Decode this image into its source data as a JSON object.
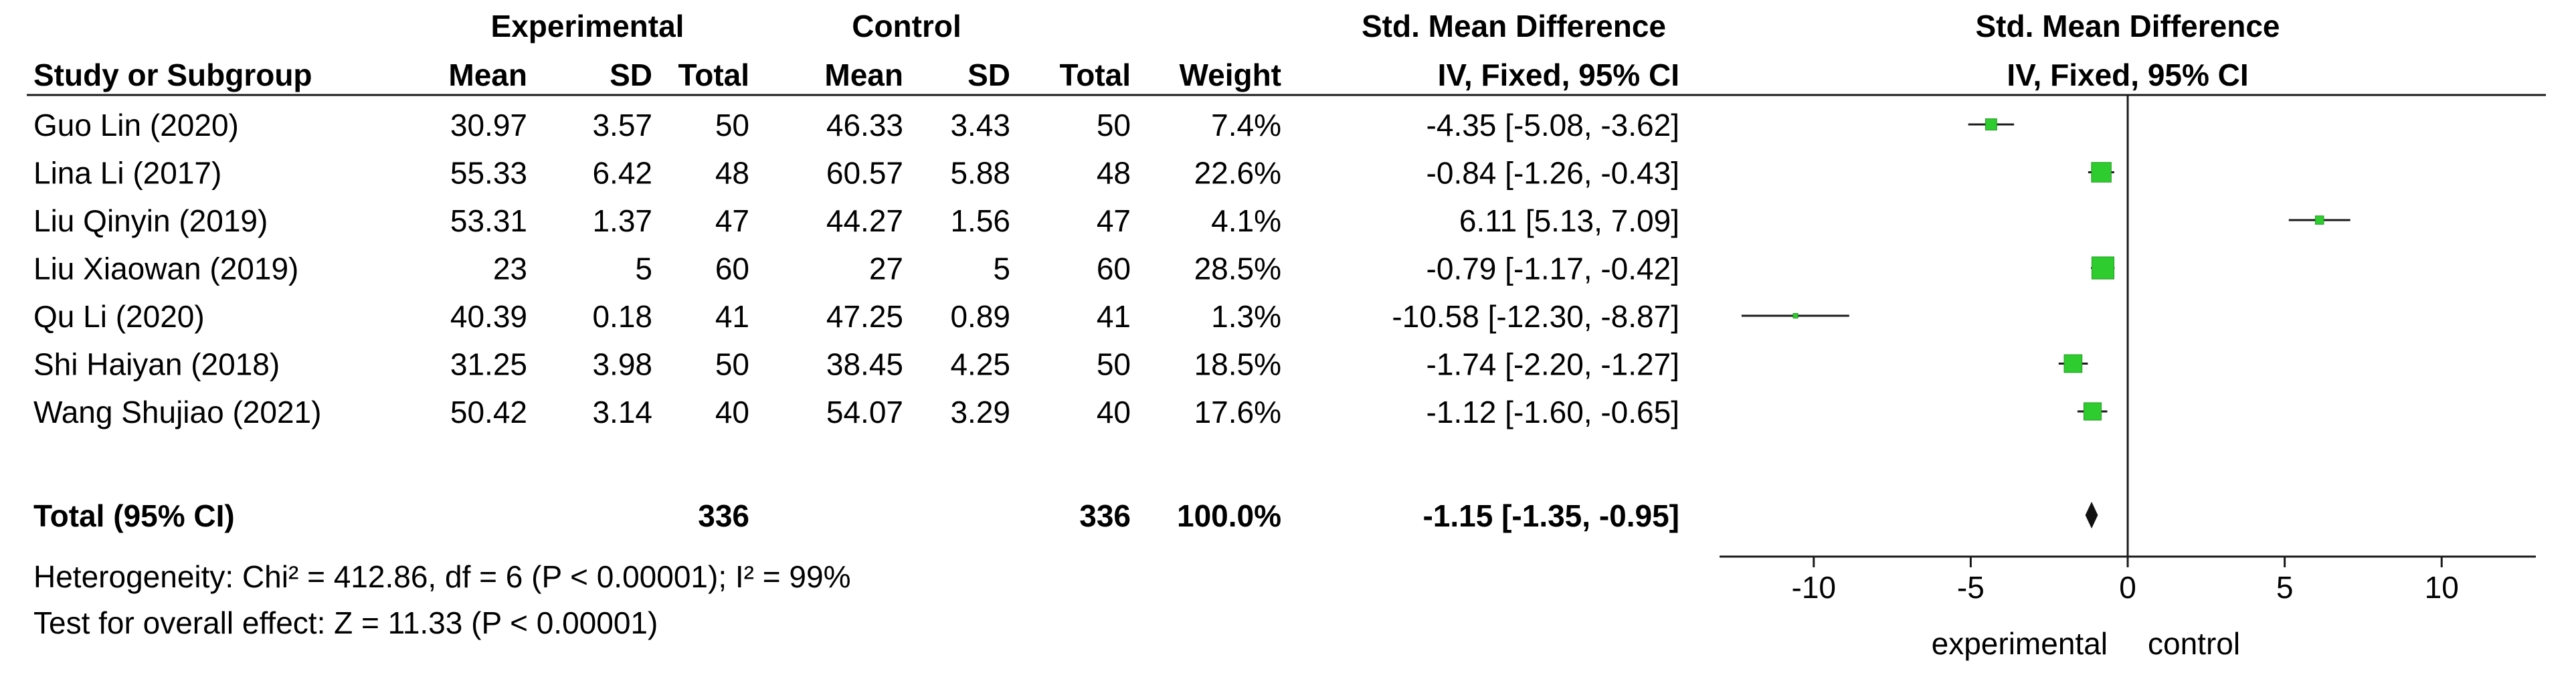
{
  "chart_data": {
    "type": "forest",
    "group_headers": {
      "experimental": "Experimental",
      "control": "Control"
    },
    "effect_header": {
      "title": "Std. Mean Difference",
      "method": "IV, Fixed, 95% CI"
    },
    "plot_header": {
      "title": "Std. Mean Difference",
      "method": "IV, Fixed, 95% CI"
    },
    "columns": {
      "study": "Study or Subgroup",
      "exp_mean": "Mean",
      "exp_sd": "SD",
      "exp_total": "Total",
      "ctrl_mean": "Mean",
      "ctrl_sd": "SD",
      "ctrl_total": "Total",
      "weight": "Weight"
    },
    "studies": [
      {
        "name": "Guo Lin (2020)",
        "exp_mean": "30.97",
        "exp_sd": "3.57",
        "exp_total": "50",
        "ctrl_mean": "46.33",
        "ctrl_sd": "3.43",
        "ctrl_total": "50",
        "weight": "7.4%",
        "ci_text": "-4.35 [-5.08, -3.62]",
        "smd": -4.35,
        "lo": -5.08,
        "hi": -3.62,
        "w": 7.4
      },
      {
        "name": "Lina Li (2017)",
        "exp_mean": "55.33",
        "exp_sd": "6.42",
        "exp_total": "48",
        "ctrl_mean": "60.57",
        "ctrl_sd": "5.88",
        "ctrl_total": "48",
        "weight": "22.6%",
        "ci_text": "-0.84 [-1.26, -0.43]",
        "smd": -0.84,
        "lo": -1.26,
        "hi": -0.43,
        "w": 22.6
      },
      {
        "name": "Liu Qinyin (2019)",
        "exp_mean": "53.31",
        "exp_sd": "1.37",
        "exp_total": "47",
        "ctrl_mean": "44.27",
        "ctrl_sd": "1.56",
        "ctrl_total": "47",
        "weight": "4.1%",
        "ci_text": "6.11 [5.13, 7.09]",
        "smd": 6.11,
        "lo": 5.13,
        "hi": 7.09,
        "w": 4.1
      },
      {
        "name": "Liu Xiaowan (2019)",
        "exp_mean": "23",
        "exp_sd": "5",
        "exp_total": "60",
        "ctrl_mean": "27",
        "ctrl_sd": "5",
        "ctrl_total": "60",
        "weight": "28.5%",
        "ci_text": "-0.79 [-1.17, -0.42]",
        "smd": -0.79,
        "lo": -1.17,
        "hi": -0.42,
        "w": 28.5
      },
      {
        "name": "Qu Li (2020)",
        "exp_mean": "40.39",
        "exp_sd": "0.18",
        "exp_total": "41",
        "ctrl_mean": "47.25",
        "ctrl_sd": "0.89",
        "ctrl_total": "41",
        "weight": "1.3%",
        "ci_text": "-10.58 [-12.30, -8.87]",
        "smd": -10.58,
        "lo": -12.3,
        "hi": -8.87,
        "w": 1.3
      },
      {
        "name": "Shi Haiyan (2018)",
        "exp_mean": "31.25",
        "exp_sd": "3.98",
        "exp_total": "50",
        "ctrl_mean": "38.45",
        "ctrl_sd": "4.25",
        "ctrl_total": "50",
        "weight": "18.5%",
        "ci_text": "-1.74 [-2.20, -1.27]",
        "smd": -1.74,
        "lo": -2.2,
        "hi": -1.27,
        "w": 18.5
      },
      {
        "name": "Wang Shujiao (2021)",
        "exp_mean": "50.42",
        "exp_sd": "3.14",
        "exp_total": "40",
        "ctrl_mean": "54.07",
        "ctrl_sd": "3.29",
        "ctrl_total": "40",
        "weight": "17.6%",
        "ci_text": "-1.12 [-1.60, -0.65]",
        "smd": -1.12,
        "lo": -1.6,
        "hi": -0.65,
        "w": 17.6
      }
    ],
    "total": {
      "label": "Total (95% CI)",
      "exp_total": "336",
      "ctrl_total": "336",
      "weight": "100.0%",
      "ci_text": "-1.15 [-1.35, -0.95]",
      "smd": -1.15,
      "lo": -1.35,
      "hi": -0.95
    },
    "heterogeneity": "Heterogeneity: Chi² = 412.86, df = 6 (P < 0.00001); I² = 99%",
    "overall_effect": "Test for overall effect: Z = 11.33 (P < 0.00001)",
    "x_axis": {
      "min": -13,
      "max": 13,
      "ticks": [
        -10,
        -5,
        0,
        5,
        10
      ]
    },
    "favours": {
      "left": "experimental",
      "right": "control"
    },
    "colors": {
      "marker": "#2ecc2e",
      "line": "#1a1a1a"
    }
  }
}
